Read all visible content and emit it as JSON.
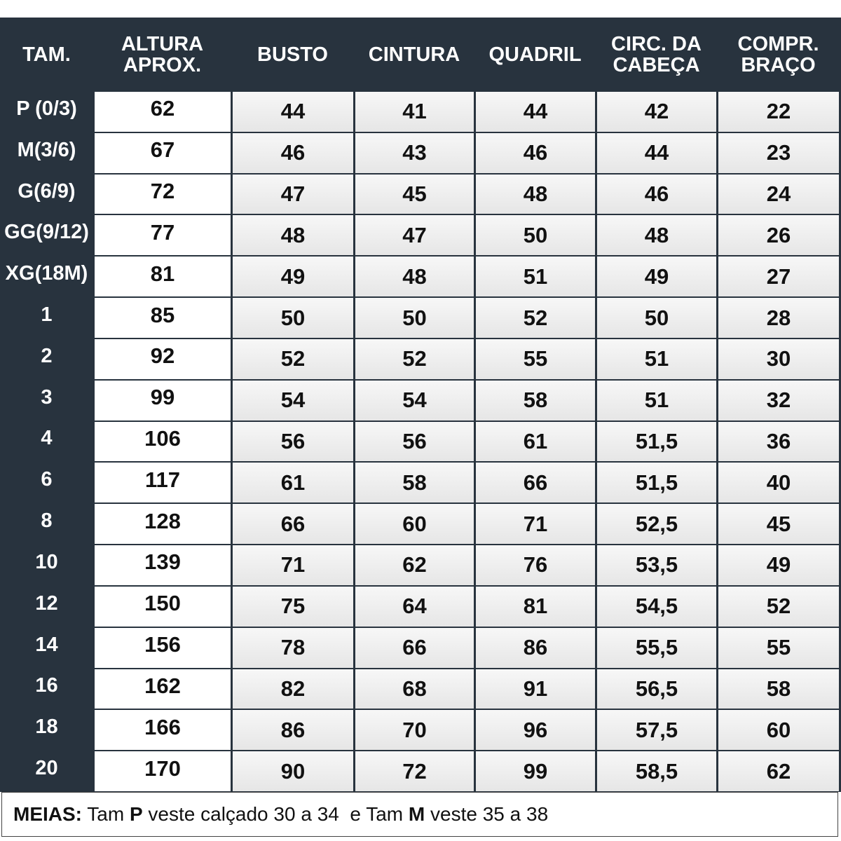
{
  "table": {
    "header": [
      "TAM.",
      "ALTURA APROX.",
      "BUSTO",
      "CINTURA",
      "QUADRIL",
      "CIRC. DA CABEÇA",
      "COMPR. BRAÇO"
    ],
    "rows": [
      [
        "P (0/3)",
        "62",
        "44",
        "41",
        "44",
        "42",
        "22"
      ],
      [
        "M(3/6)",
        "67",
        "46",
        "43",
        "46",
        "44",
        "23"
      ],
      [
        "G(6/9)",
        "72",
        "47",
        "45",
        "48",
        "46",
        "24"
      ],
      [
        "GG(9/12)",
        "77",
        "48",
        "47",
        "50",
        "48",
        "26"
      ],
      [
        "XG(18M)",
        "81",
        "49",
        "48",
        "51",
        "49",
        "27"
      ],
      [
        "1",
        "85",
        "50",
        "50",
        "52",
        "50",
        "28"
      ],
      [
        "2",
        "92",
        "52",
        "52",
        "55",
        "51",
        "30"
      ],
      [
        "3",
        "99",
        "54",
        "54",
        "58",
        "51",
        "32"
      ],
      [
        "4",
        "106",
        "56",
        "56",
        "61",
        "51,5",
        "36"
      ],
      [
        "6",
        "117",
        "61",
        "58",
        "66",
        "51,5",
        "40"
      ],
      [
        "8",
        "128",
        "66",
        "60",
        "71",
        "52,5",
        "45"
      ],
      [
        "10",
        "139",
        "71",
        "62",
        "76",
        "53,5",
        "49"
      ],
      [
        "12",
        "150",
        "75",
        "64",
        "81",
        "54,5",
        "52"
      ],
      [
        "14",
        "156",
        "78",
        "66",
        "86",
        "55,5",
        "55"
      ],
      [
        "16",
        "162",
        "82",
        "68",
        "91",
        "56,5",
        "58"
      ],
      [
        "18",
        "166",
        "86",
        "70",
        "96",
        "57,5",
        "60"
      ],
      [
        "20",
        "170",
        "90",
        "72",
        "99",
        "58,5",
        "62"
      ]
    ]
  },
  "footer": [
    {
      "text": "MEIAS:",
      "bold": true
    },
    {
      "text": " Tam ",
      "bold": false
    },
    {
      "text": "P",
      "bold": true
    },
    {
      "text": " veste calçado 30 a 34  e Tam ",
      "bold": false
    },
    {
      "text": "M",
      "bold": true
    },
    {
      "text": " veste 35 a 38",
      "bold": false
    }
  ]
}
